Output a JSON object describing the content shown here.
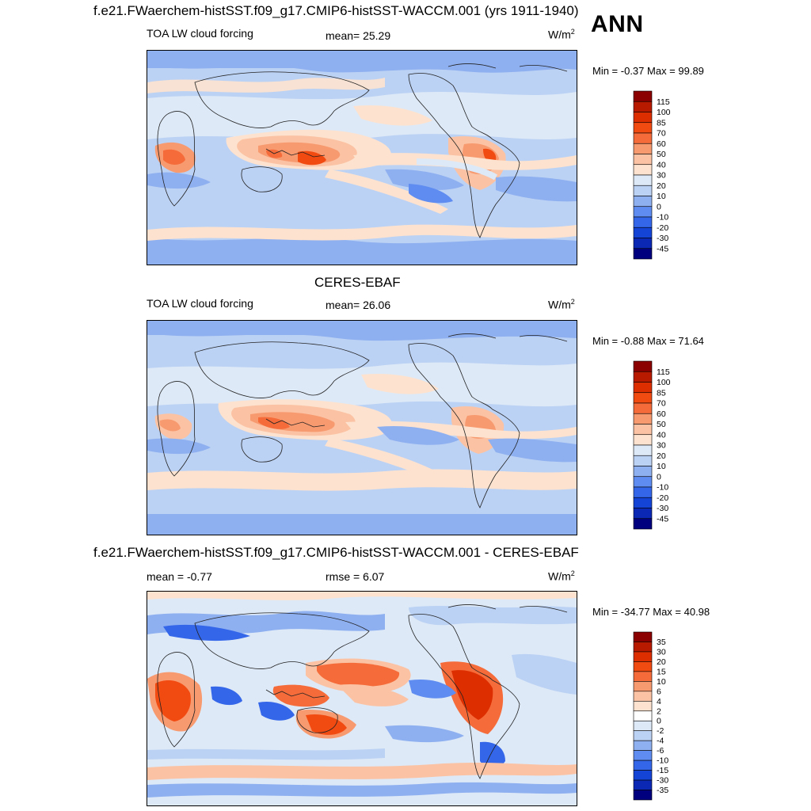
{
  "season": "ANN",
  "panels": [
    {
      "title": "f.e21.FWaerchem-histSST.f09_g17.CMIP6-histSST-WACCM.001 (yrs 1911-1940)",
      "left_label": "TOA LW cloud forcing",
      "center_label": "mean=  25.29",
      "units_base": "W/m",
      "units_sup": "2",
      "minmax": "Min =  -0.37 Max =  99.89",
      "colorbar": {
        "labels": [
          "115",
          "100",
          "85",
          "70",
          "60",
          "50",
          "40",
          "30",
          "20",
          "10",
          "0",
          "-10",
          "-20",
          "-30",
          "-45"
        ],
        "colors": [
          "#8b0000",
          "#b81a00",
          "#dd2e00",
          "#f24b12",
          "#f56c3a",
          "#f89a70",
          "#fbc3a4",
          "#fde3cf",
          "#dde9f7",
          "#bcd2f4",
          "#8fb0f0",
          "#5f8cf0",
          "#3466ea",
          "#1444d6",
          "#0a28b4",
          "#00007f"
        ]
      }
    },
    {
      "title": "CERES-EBAF",
      "left_label": "TOA LW cloud forcing",
      "center_label": "mean=  26.06",
      "units_base": "W/m",
      "units_sup": "2",
      "minmax": "Min =  -0.88 Max =  71.64",
      "colorbar": {
        "labels": [
          "115",
          "100",
          "85",
          "70",
          "60",
          "50",
          "40",
          "30",
          "20",
          "10",
          "0",
          "-10",
          "-20",
          "-30",
          "-45"
        ],
        "colors": [
          "#8b0000",
          "#b81a00",
          "#dd2e00",
          "#f24b12",
          "#f56c3a",
          "#f89a70",
          "#fbc3a4",
          "#fde3cf",
          "#dde9f7",
          "#bcd2f4",
          "#8fb0f0",
          "#5f8cf0",
          "#3466ea",
          "#1444d6",
          "#0a28b4",
          "#00007f"
        ]
      }
    },
    {
      "title": "f.e21.FWaerchem-histSST.f09_g17.CMIP6-histSST-WACCM.001 - CERES-EBAF",
      "left_label": "mean =  -0.77",
      "center_label": "rmse =    6.07",
      "units_base": "W/m",
      "units_sup": "2",
      "minmax": "Min = -34.77 Max =  40.98",
      "colorbar": {
        "labels": [
          "35",
          "30",
          "20",
          "15",
          "10",
          "6",
          "4",
          "2",
          "0",
          "-2",
          "-4",
          "-6",
          "-10",
          "-15",
          "-30",
          "-35"
        ],
        "colors": [
          "#8b0000",
          "#b81a00",
          "#dd2e00",
          "#f24b12",
          "#f56c3a",
          "#f89a70",
          "#fbc3a4",
          "#fde3cf",
          "#ffffff",
          "#dde9f7",
          "#bcd2f4",
          "#8fb0f0",
          "#5f8cf0",
          "#3466ea",
          "#1444d6",
          "#0a28b4",
          "#00007f"
        ]
      }
    }
  ]
}
